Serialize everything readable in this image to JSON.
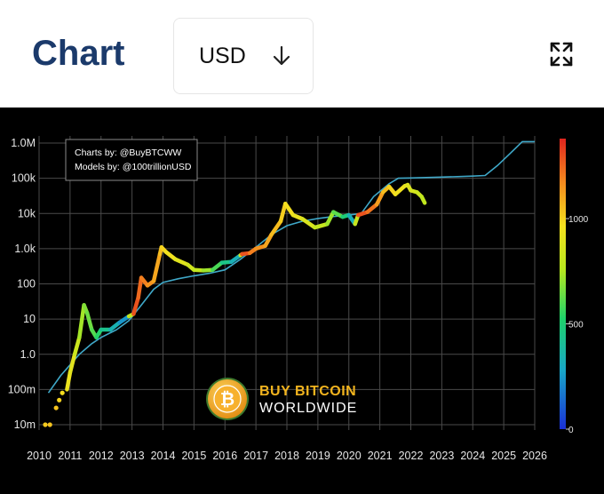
{
  "header": {
    "title": "Chart",
    "currency": "USD",
    "expand_icon": "expand-arrows-icon",
    "dropdown_icon": "arrow-down-icon"
  },
  "chart_data": {
    "type": "scatter",
    "title": "",
    "xlabel": "",
    "ylabel": "",
    "yscale": "log",
    "xlim": [
      2010,
      2026
    ],
    "ylim": [
      0.01,
      1000000
    ],
    "x_ticks": [
      2010,
      2011,
      2012,
      2013,
      2014,
      2015,
      2016,
      2017,
      2018,
      2019,
      2020,
      2021,
      2022,
      2023,
      2024,
      2025,
      2026
    ],
    "y_ticks": [
      {
        "value": 0.01,
        "label": "10m"
      },
      {
        "value": 0.1,
        "label": "100m"
      },
      {
        "value": 1,
        "label": "1.0"
      },
      {
        "value": 10,
        "label": "10"
      },
      {
        "value": 100,
        "label": "100"
      },
      {
        "value": 1000,
        "label": "1.0k"
      },
      {
        "value": 10000,
        "label": "10k"
      },
      {
        "value": 100000,
        "label": "100k"
      },
      {
        "value": 1000000,
        "label": "1.0M"
      }
    ],
    "grid": true,
    "background": "#000000",
    "annotation_box": {
      "lines": [
        "Charts by: @BuyBTCWW",
        "Models by: @100trillionUSD"
      ],
      "placement": "top-left"
    },
    "watermark": {
      "line1": "BUY BITCOIN",
      "line2": "WORLDWIDE",
      "line1_color": "#f2b41e",
      "line2_color": "#ffffff"
    },
    "colorbar": {
      "min": 0,
      "max": 1380,
      "ticks": [
        {
          "value": 0,
          "label": "0"
        },
        {
          "value": 500,
          "label": "500"
        },
        {
          "value": 1000,
          "label": "1000"
        }
      ],
      "colors": [
        "#1a2fd6",
        "#18a6c9",
        "#1ed26a",
        "#b8e81e",
        "#f5e11e",
        "#f58a1e",
        "#e0251e"
      ]
    },
    "model_series": {
      "color": "#3fa8c8",
      "points": [
        [
          2010.3,
          0.08
        ],
        [
          2010.7,
          0.25
        ],
        [
          2011.0,
          0.5
        ],
        [
          2011.3,
          1.0
        ],
        [
          2011.7,
          2.0
        ],
        [
          2012.0,
          3.0
        ],
        [
          2012.5,
          5.0
        ],
        [
          2012.9,
          9.0
        ],
        [
          2013.3,
          25
        ],
        [
          2013.7,
          70
        ],
        [
          2014.0,
          110
        ],
        [
          2014.5,
          140
        ],
        [
          2015.0,
          170
        ],
        [
          2015.5,
          200
        ],
        [
          2016.0,
          250
        ],
        [
          2016.5,
          500
        ],
        [
          2017.0,
          1100
        ],
        [
          2017.5,
          2500
        ],
        [
          2018.0,
          4500
        ],
        [
          2018.5,
          6000
        ],
        [
          2019.0,
          7200
        ],
        [
          2019.5,
          8200
        ],
        [
          2020.0,
          9000
        ],
        [
          2020.4,
          10000
        ],
        [
          2020.8,
          30000
        ],
        [
          2021.3,
          70000
        ],
        [
          2021.6,
          100000
        ],
        [
          2022.0,
          102000
        ],
        [
          2022.5,
          105000
        ],
        [
          2023.0,
          108000
        ],
        [
          2023.5,
          111000
        ],
        [
          2024.0,
          115000
        ],
        [
          2024.4,
          120000
        ],
        [
          2024.8,
          230000
        ],
        [
          2025.2,
          500000
        ],
        [
          2025.6,
          1100000
        ],
        [
          2026.0,
          1100000
        ]
      ]
    },
    "price_series": [
      [
        2010.2,
        0.01,
        980
      ],
      [
        2010.35,
        0.01,
        1000
      ],
      [
        2010.55,
        0.03,
        1000
      ],
      [
        2010.65,
        0.05,
        960
      ],
      [
        2010.75,
        0.08,
        930
      ],
      [
        2010.9,
        0.1,
        900
      ],
      [
        2011.0,
        0.3,
        870
      ],
      [
        2011.15,
        1.0,
        820
      ],
      [
        2011.3,
        3.0,
        700
      ],
      [
        2011.45,
        25,
        620
      ],
      [
        2011.55,
        15,
        600
      ],
      [
        2011.7,
        5.0,
        560
      ],
      [
        2011.85,
        3.0,
        520
      ],
      [
        2012.0,
        5.0,
        420
      ],
      [
        2012.3,
        5.0,
        330
      ],
      [
        2012.6,
        8.0,
        240
      ],
      [
        2012.9,
        12,
        160
      ],
      [
        2013.05,
        14,
        1300
      ],
      [
        2013.2,
        40,
        1250
      ],
      [
        2013.3,
        150,
        1200
      ],
      [
        2013.5,
        90,
        1150
      ],
      [
        2013.7,
        120,
        1100
      ],
      [
        2013.9,
        700,
        1050
      ],
      [
        2013.95,
        1100,
        980
      ],
      [
        2014.1,
        800,
        930
      ],
      [
        2014.4,
        500,
        880
      ],
      [
        2014.8,
        350,
        800
      ],
      [
        2015.0,
        250,
        760
      ],
      [
        2015.3,
        240,
        700
      ],
      [
        2015.6,
        250,
        600
      ],
      [
        2015.9,
        400,
        450
      ],
      [
        2016.2,
        420,
        330
      ],
      [
        2016.5,
        650,
        220
      ],
      [
        2016.55,
        700,
        1350
      ],
      [
        2016.8,
        750,
        1200
      ],
      [
        2017.0,
        1000,
        1150
      ],
      [
        2017.3,
        1200,
        1100
      ],
      [
        2017.5,
        2500,
        1050
      ],
      [
        2017.8,
        6000,
        990
      ],
      [
        2017.95,
        19000,
        950
      ],
      [
        2018.2,
        9000,
        900
      ],
      [
        2018.5,
        7000,
        850
      ],
      [
        2018.9,
        4000,
        780
      ],
      [
        2019.3,
        5000,
        700
      ],
      [
        2019.5,
        11000,
        600
      ],
      [
        2019.8,
        8000,
        500
      ],
      [
        2020.0,
        9000,
        350
      ],
      [
        2020.2,
        5000,
        200
      ],
      [
        2020.3,
        9000,
        1300
      ],
      [
        2020.6,
        11000,
        1250
      ],
      [
        2020.9,
        18000,
        1150
      ],
      [
        2021.1,
        40000,
        1050
      ],
      [
        2021.3,
        58000,
        980
      ],
      [
        2021.5,
        35000,
        930
      ],
      [
        2021.8,
        60000,
        880
      ],
      [
        2021.9,
        65000,
        850
      ],
      [
        2022.0,
        45000,
        820
      ],
      [
        2022.2,
        40000,
        780
      ],
      [
        2022.35,
        30000,
        740
      ],
      [
        2022.45,
        20000,
        700
      ]
    ]
  }
}
